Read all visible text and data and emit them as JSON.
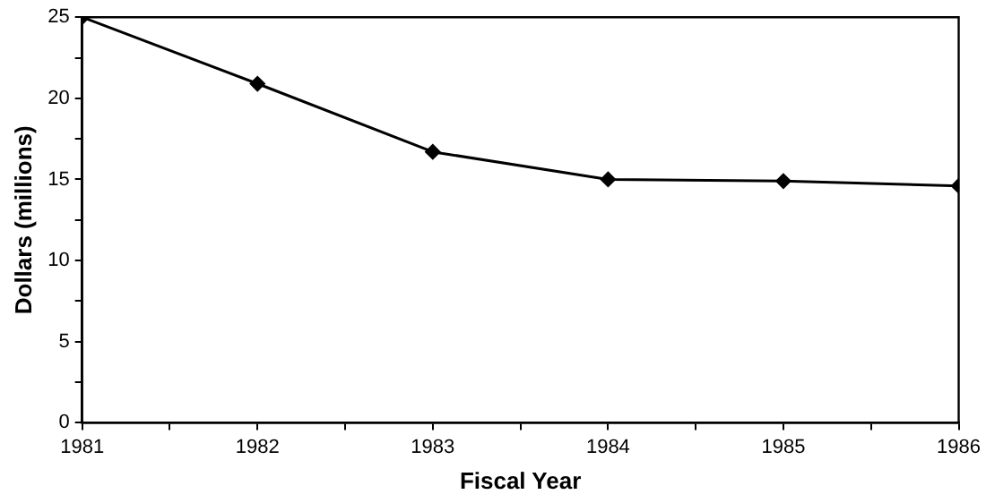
{
  "chart_data": {
    "type": "line",
    "xlabel": "Fiscal Year",
    "ylabel": "Dollars (millions)",
    "x": [
      1981,
      1982,
      1983,
      1984,
      1985,
      1986
    ],
    "series": [
      {
        "color": "#000000",
        "values": [
          25,
          20.9,
          16.7,
          15.0,
          14.9,
          14.6
        ]
      }
    ],
    "xlim": [
      1981,
      1986
    ],
    "xticks": [
      1981,
      {
        "value": 1981.5,
        "label": null
      },
      1982,
      {
        "value": 1982.5,
        "label": null
      },
      1983,
      {
        "value": 1983.5,
        "label": null
      },
      1984,
      {
        "value": 1984.5,
        "label": null
      },
      1985,
      {
        "value": 1985.5,
        "label": null
      },
      1986
    ],
    "ylim": [
      0,
      25
    ],
    "yticks": [
      0,
      {
        "value": 2.5,
        "label": null
      },
      5,
      {
        "value": 7.5,
        "label": null
      },
      10,
      {
        "value": 12.5,
        "label": null
      },
      15,
      {
        "value": 17.5,
        "label": null
      },
      20,
      {
        "value": 22.5,
        "label": null
      },
      25
    ],
    "grid": false,
    "legend": false,
    "marker": "diamond",
    "line_style": "solid"
  }
}
